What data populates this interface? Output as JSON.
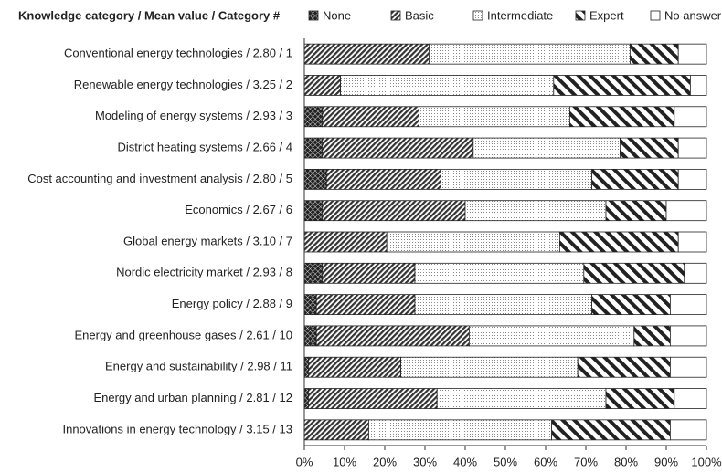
{
  "chart_data": {
    "type": "stacked-barh",
    "title": "Knowledge category / Mean value / Category #",
    "categories": [
      "Conventional energy technologies / 2.80 / 1",
      "Renewable energy technologies / 3.25 / 2",
      "Modeling of energy systems / 2.93 / 3",
      "District heating systems / 2.66 / 4",
      "Cost accounting and investment analysis / 2.80 / 5",
      "Economics  / 2.67 / 6",
      "Global energy markets / 3.10 / 7",
      "Nordic electricity market / 2.93 / 8",
      "Energy policy / 2.88 / 9",
      "Energy and greenhouse gases / 2.61 / 10",
      "Energy and sustainability / 2.98 / 11",
      "Energy and urban planning / 2.81 / 12",
      "Innovations in energy technology / 3.15 / 13"
    ],
    "series": [
      {
        "name": "None",
        "color": "#222222",
        "pattern": "crosshatch",
        "values": [
          0,
          0,
          4.5,
          4.5,
          5.5,
          4.5,
          0,
          4.5,
          3,
          3,
          1,
          1,
          0
        ]
      },
      {
        "name": "Basic",
        "color": "#333333",
        "pattern": "diagonal",
        "values": [
          31,
          9,
          24,
          37.5,
          28.5,
          35.5,
          20.5,
          23,
          24.5,
          38,
          23,
          32,
          16
        ]
      },
      {
        "name": "Intermediate",
        "color": "#888888",
        "pattern": "dots",
        "values": [
          50,
          53,
          37.5,
          36.5,
          37.5,
          35,
          43,
          42,
          44,
          41,
          44,
          42,
          45.5
        ]
      },
      {
        "name": "Expert",
        "color": "#222222",
        "pattern": "backslash",
        "values": [
          12,
          34,
          26,
          14.5,
          21.5,
          15,
          29.5,
          25,
          19.5,
          9,
          23,
          17,
          29.5
        ]
      },
      {
        "name": "No answer",
        "color": "#ffffff",
        "pattern": "solid",
        "values": [
          7,
          4,
          8,
          7,
          7,
          10,
          7,
          5.5,
          9,
          9,
          9,
          8,
          9
        ]
      }
    ],
    "xlim": [
      0,
      100
    ],
    "xticks": [
      {
        "value": 0,
        "label": "0%"
      },
      {
        "value": 10,
        "label": "10%"
      },
      {
        "value": 20,
        "label": "20%"
      },
      {
        "value": 30,
        "label": "30%"
      },
      {
        "value": 40,
        "label": "40%"
      },
      {
        "value": 50,
        "label": "50%"
      },
      {
        "value": 60,
        "label": "60%"
      },
      {
        "value": 70,
        "label": "70%"
      },
      {
        "value": 80,
        "label": "80%"
      },
      {
        "value": 90,
        "label": "90%"
      },
      {
        "value": 100,
        "label": "100%"
      }
    ],
    "legend": "top"
  }
}
